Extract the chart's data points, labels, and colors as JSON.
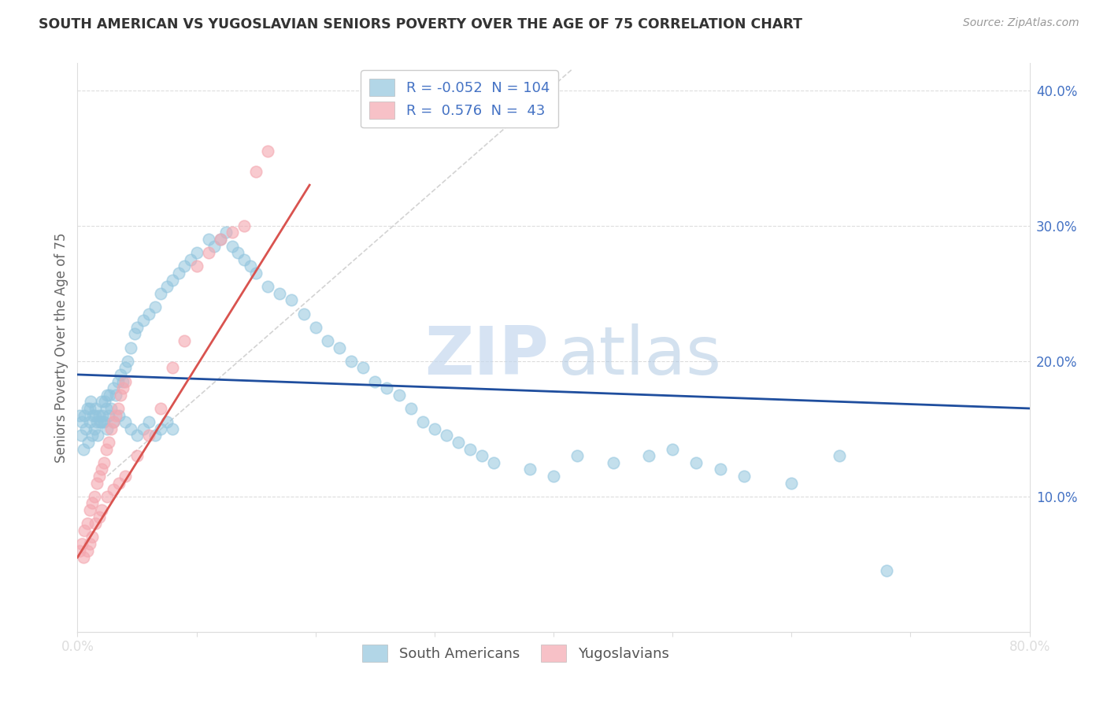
{
  "title": "SOUTH AMERICAN VS YUGOSLAVIAN SENIORS POVERTY OVER THE AGE OF 75 CORRELATION CHART",
  "source": "Source: ZipAtlas.com",
  "ylabel": "Seniors Poverty Over the Age of 75",
  "xlim": [
    0.0,
    0.8
  ],
  "ylim": [
    0.0,
    0.42
  ],
  "yticks_right": [
    0.1,
    0.2,
    0.3,
    0.4
  ],
  "ytick_right_labels": [
    "10.0%",
    "20.0%",
    "30.0%",
    "40.0%"
  ],
  "blue_R": -0.052,
  "blue_N": 104,
  "pink_R": 0.576,
  "pink_N": 43,
  "blue_color": "#92C5DE",
  "pink_color": "#F4A7B0",
  "blue_line_color": "#1F4E9E",
  "pink_line_color": "#D9534F",
  "diag_line_color": "#C8C8C8",
  "watermark_zip": "ZIP",
  "watermark_atlas": "atlas",
  "tick_color": "#4472C4",
  "grid_color": "#DDDDDD",
  "blue_scatter_x": [
    0.002,
    0.003,
    0.004,
    0.005,
    0.006,
    0.007,
    0.008,
    0.009,
    0.01,
    0.011,
    0.012,
    0.013,
    0.014,
    0.015,
    0.016,
    0.017,
    0.018,
    0.019,
    0.02,
    0.021,
    0.022,
    0.023,
    0.024,
    0.025,
    0.026,
    0.027,
    0.028,
    0.03,
    0.032,
    0.034,
    0.036,
    0.038,
    0.04,
    0.042,
    0.045,
    0.048,
    0.05,
    0.055,
    0.06,
    0.065,
    0.07,
    0.075,
    0.08,
    0.085,
    0.09,
    0.095,
    0.1,
    0.11,
    0.115,
    0.12,
    0.125,
    0.13,
    0.135,
    0.14,
    0.145,
    0.15,
    0.16,
    0.17,
    0.18,
    0.19,
    0.2,
    0.21,
    0.22,
    0.23,
    0.24,
    0.25,
    0.26,
    0.27,
    0.28,
    0.29,
    0.3,
    0.31,
    0.32,
    0.33,
    0.34,
    0.35,
    0.38,
    0.4,
    0.42,
    0.45,
    0.48,
    0.5,
    0.52,
    0.54,
    0.56,
    0.6,
    0.64,
    0.68,
    0.01,
    0.015,
    0.02,
    0.025,
    0.03,
    0.035,
    0.04,
    0.045,
    0.05,
    0.055,
    0.06,
    0.065,
    0.07,
    0.075,
    0.08
  ],
  "blue_scatter_y": [
    0.16,
    0.145,
    0.155,
    0.135,
    0.16,
    0.15,
    0.165,
    0.14,
    0.155,
    0.17,
    0.145,
    0.16,
    0.15,
    0.165,
    0.155,
    0.145,
    0.16,
    0.155,
    0.17,
    0.16,
    0.155,
    0.17,
    0.165,
    0.175,
    0.16,
    0.175,
    0.165,
    0.18,
    0.175,
    0.185,
    0.19,
    0.185,
    0.195,
    0.2,
    0.21,
    0.22,
    0.225,
    0.23,
    0.235,
    0.24,
    0.25,
    0.255,
    0.26,
    0.265,
    0.27,
    0.275,
    0.28,
    0.29,
    0.285,
    0.29,
    0.295,
    0.285,
    0.28,
    0.275,
    0.27,
    0.265,
    0.255,
    0.25,
    0.245,
    0.235,
    0.225,
    0.215,
    0.21,
    0.2,
    0.195,
    0.185,
    0.18,
    0.175,
    0.165,
    0.155,
    0.15,
    0.145,
    0.14,
    0.135,
    0.13,
    0.125,
    0.12,
    0.115,
    0.13,
    0.125,
    0.13,
    0.135,
    0.125,
    0.12,
    0.115,
    0.11,
    0.13,
    0.045,
    0.165,
    0.16,
    0.155,
    0.15,
    0.155,
    0.16,
    0.155,
    0.15,
    0.145,
    0.15,
    0.155,
    0.145,
    0.15,
    0.155,
    0.15
  ],
  "pink_scatter_x": [
    0.002,
    0.004,
    0.006,
    0.008,
    0.01,
    0.012,
    0.014,
    0.016,
    0.018,
    0.02,
    0.022,
    0.024,
    0.026,
    0.028,
    0.03,
    0.032,
    0.034,
    0.036,
    0.038,
    0.04,
    0.005,
    0.008,
    0.01,
    0.012,
    0.015,
    0.018,
    0.02,
    0.025,
    0.03,
    0.035,
    0.04,
    0.05,
    0.06,
    0.07,
    0.08,
    0.09,
    0.1,
    0.11,
    0.12,
    0.13,
    0.14,
    0.15,
    0.16
  ],
  "pink_scatter_y": [
    0.06,
    0.065,
    0.075,
    0.08,
    0.09,
    0.095,
    0.1,
    0.11,
    0.115,
    0.12,
    0.125,
    0.135,
    0.14,
    0.15,
    0.155,
    0.16,
    0.165,
    0.175,
    0.18,
    0.185,
    0.055,
    0.06,
    0.065,
    0.07,
    0.08,
    0.085,
    0.09,
    0.1,
    0.105,
    0.11,
    0.115,
    0.13,
    0.145,
    0.165,
    0.195,
    0.215,
    0.27,
    0.28,
    0.29,
    0.295,
    0.3,
    0.34,
    0.355
  ],
  "blue_line_x": [
    0.0,
    0.8
  ],
  "blue_line_y": [
    0.19,
    0.165
  ],
  "pink_line_x": [
    0.0,
    0.195
  ],
  "pink_line_y": [
    0.055,
    0.33
  ],
  "diag_line_x": [
    0.025,
    0.415
  ],
  "diag_line_y": [
    0.115,
    0.415
  ]
}
